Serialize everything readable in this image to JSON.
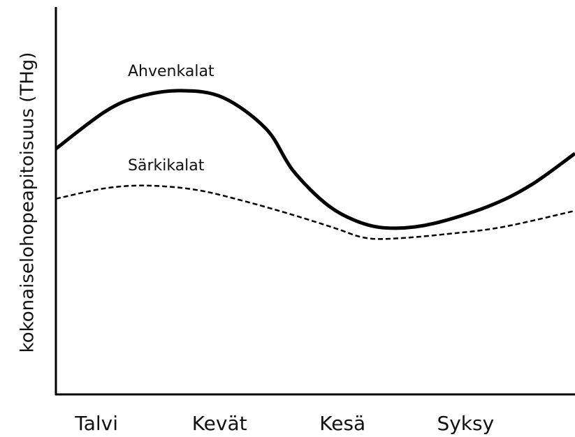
{
  "chart_data": {
    "type": "line",
    "y_label": "kokonaiselohopeapitoisuus (THg)",
    "categories": [
      "Talvi",
      "Kevät",
      "Kesä",
      "Syksy"
    ],
    "xlim": [
      -0.33,
      3.89
    ],
    "ylim": [
      0,
      100
    ],
    "series": [
      {
        "name": "Ahvenkalat",
        "color": "#000000",
        "dashed": false,
        "x": [
          -0.33,
          0.07,
          0.35,
          0.69,
          1.03,
          1.38,
          1.6,
          1.89,
          2.17,
          2.43,
          2.74,
          3.19,
          3.53,
          3.89
        ],
        "values": [
          63.4,
          73,
          76.9,
          78.4,
          76.6,
          68.5,
          57.7,
          48.6,
          44.1,
          42.9,
          44.1,
          48.6,
          54,
          62.2
        ]
      },
      {
        "name": "Särkikalat",
        "color": "#000000",
        "dashed": true,
        "x": [
          -0.33,
          0.07,
          0.41,
          0.81,
          1.2,
          1.6,
          1.94,
          2.17,
          2.4,
          2.85,
          3.3,
          3.89
        ],
        "values": [
          50.5,
          53.2,
          53.9,
          52.8,
          49.9,
          46.3,
          42.9,
          40.5,
          40.2,
          41.4,
          43.2,
          47.4
        ]
      }
    ]
  }
}
